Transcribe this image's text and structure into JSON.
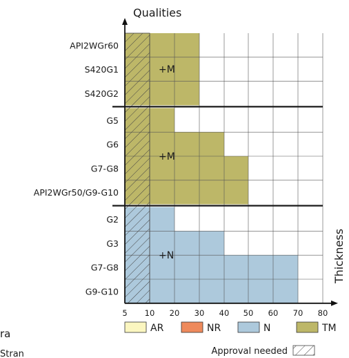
{
  "chart_data": {
    "type": "bar",
    "orientation": "horizontal",
    "ylabel": "Qualities",
    "xlabel": "Thickness",
    "x_ticks": [
      "5",
      "10",
      "20",
      "30",
      "40",
      "50",
      "60",
      "70",
      "80"
    ],
    "xlim": [
      5,
      80
    ],
    "grid": true,
    "hatch_region": {
      "from": 5,
      "to": 10,
      "meaning": "Approval needed"
    },
    "groups": [
      {
        "annotation": "+M",
        "series": "TM",
        "rows": [
          {
            "label": "API2WGr60",
            "max": 30
          },
          {
            "label": "S420G1",
            "max": 30
          },
          {
            "label": "S420G2",
            "max": 30
          }
        ]
      },
      {
        "annotation": "+M",
        "series": "TM",
        "rows": [
          {
            "label": "G5",
            "max": 20
          },
          {
            "label": "G6",
            "max": 40
          },
          {
            "label": "G7-G8",
            "max": 50
          },
          {
            "label": "API2WGr50/G9-G10",
            "max": 50
          }
        ]
      },
      {
        "annotation": "+N",
        "series": "N",
        "rows": [
          {
            "label": "G2",
            "max": 20
          },
          {
            "label": "G3",
            "max": 40
          },
          {
            "label": "G7-G8",
            "max": 70
          },
          {
            "label": "G9-G10",
            "max": 70
          }
        ]
      }
    ],
    "legend": {
      "placement": "bottom",
      "items": [
        {
          "label": "AR",
          "color": "#fbf6c0"
        },
        {
          "label": "NR",
          "color": "#ee8a5c"
        },
        {
          "label": "N",
          "color": "#adc9dc"
        },
        {
          "label": "TM",
          "color": "#bdb768"
        }
      ],
      "hatch_label": "Approval needed"
    }
  },
  "stray_text": {
    "line1": "ra",
    "line2": "Stran"
  }
}
